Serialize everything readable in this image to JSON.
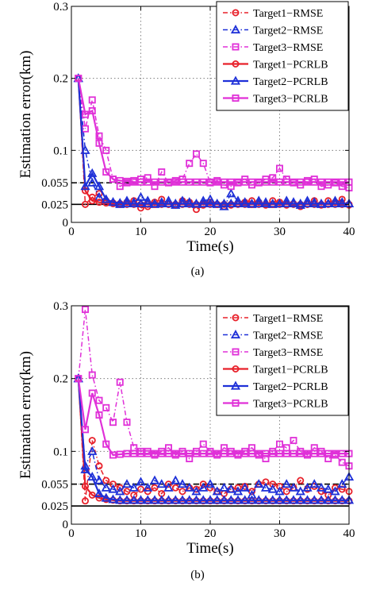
{
  "chart_data": [
    {
      "type": "line",
      "panel_label": "(a)",
      "xlabel": "Time(s)",
      "ylabel": "Estimation error(km)",
      "xlim": [
        0,
        40
      ],
      "ylim": [
        0,
        0.3
      ],
      "xticks": [
        0,
        10,
        20,
        30,
        40
      ],
      "yticks": [
        0,
        0.025,
        0.055,
        0.1,
        0.2,
        0.3
      ],
      "ytick_labels": [
        "0",
        "0.025",
        "0.055",
        "0.1",
        "0.2",
        "0.3"
      ],
      "grid": true,
      "legend_position": "top-right",
      "reference_lines": [
        {
          "y": 0.055,
          "style": "dashed",
          "color": "#000000"
        },
        {
          "y": 0.025,
          "style": "solid",
          "color": "#000000"
        }
      ],
      "x": [
        1,
        2,
        3,
        4,
        5,
        6,
        7,
        8,
        9,
        10,
        11,
        12,
        13,
        14,
        15,
        16,
        17,
        18,
        19,
        20,
        21,
        22,
        23,
        24,
        25,
        26,
        27,
        28,
        29,
        30,
        31,
        32,
        33,
        34,
        35,
        36,
        37,
        38,
        39,
        40
      ],
      "series": [
        {
          "name": "Target1−RMSE",
          "color": "#e8202a",
          "marker": "circle",
          "style": "dashdot",
          "values": [
            0.2,
            0.025,
            0.035,
            0.04,
            0.03,
            0.027,
            0.025,
            0.028,
            0.03,
            0.02,
            0.022,
            0.028,
            0.032,
            0.025,
            0.024,
            0.03,
            0.028,
            0.018,
            0.024,
            0.028,
            0.025,
            0.022,
            0.024,
            0.026,
            0.028,
            0.03,
            0.028,
            0.024,
            0.03,
            0.028,
            0.024,
            0.026,
            0.022,
            0.025,
            0.03,
            0.024,
            0.03,
            0.028,
            0.032,
            0.024
          ]
        },
        {
          "name": "Target2−RMSE",
          "color": "#1e30d8",
          "marker": "triangle",
          "style": "dashdot",
          "values": [
            0.2,
            0.1,
            0.055,
            0.035,
            0.03,
            0.028,
            0.025,
            0.03,
            0.028,
            0.035,
            0.03,
            0.025,
            0.028,
            0.03,
            0.024,
            0.03,
            0.028,
            0.025,
            0.03,
            0.032,
            0.025,
            0.022,
            0.04,
            0.03,
            0.028,
            0.025,
            0.03,
            0.028,
            0.025,
            0.026,
            0.03,
            0.028,
            0.024,
            0.03,
            0.028,
            0.025,
            0.026,
            0.03,
            0.028,
            0.026
          ]
        },
        {
          "name": "Target3−RMSE",
          "color": "#e030d8",
          "marker": "square",
          "style": "dashdot",
          "values": [
            0.2,
            0.13,
            0.17,
            0.12,
            0.1,
            0.06,
            0.05,
            0.055,
            0.058,
            0.06,
            0.062,
            0.05,
            0.07,
            0.055,
            0.058,
            0.06,
            0.082,
            0.095,
            0.082,
            0.055,
            0.058,
            0.052,
            0.05,
            0.055,
            0.06,
            0.052,
            0.055,
            0.06,
            0.062,
            0.075,
            0.06,
            0.055,
            0.052,
            0.058,
            0.06,
            0.05,
            0.052,
            0.055,
            0.05,
            0.048
          ]
        },
        {
          "name": "Target1−PCRLB",
          "color": "#e8202a",
          "marker": "circle",
          "style": "solid",
          "values": [
            0.2,
            0.044,
            0.03,
            0.028,
            0.027,
            0.026,
            0.026,
            0.025,
            0.025,
            0.025,
            0.025,
            0.025,
            0.025,
            0.025,
            0.025,
            0.025,
            0.025,
            0.025,
            0.025,
            0.025,
            0.025,
            0.025,
            0.025,
            0.025,
            0.025,
            0.025,
            0.025,
            0.025,
            0.025,
            0.025,
            0.025,
            0.025,
            0.025,
            0.025,
            0.025,
            0.025,
            0.025,
            0.025,
            0.025,
            0.025
          ]
        },
        {
          "name": "Target2−PCRLB",
          "color": "#1e30d8",
          "marker": "triangle",
          "style": "solid",
          "values": [
            0.2,
            0.05,
            0.068,
            0.05,
            0.032,
            0.028,
            0.027,
            0.026,
            0.026,
            0.026,
            0.026,
            0.026,
            0.026,
            0.026,
            0.026,
            0.026,
            0.026,
            0.026,
            0.026,
            0.026,
            0.026,
            0.026,
            0.026,
            0.026,
            0.026,
            0.026,
            0.026,
            0.026,
            0.026,
            0.026,
            0.026,
            0.026,
            0.026,
            0.026,
            0.026,
            0.026,
            0.026,
            0.026,
            0.026,
            0.026
          ]
        },
        {
          "name": "Target3−PCRLB",
          "color": "#e030d8",
          "marker": "square",
          "style": "solid",
          "values": [
            0.2,
            0.15,
            0.155,
            0.11,
            0.07,
            0.06,
            0.058,
            0.057,
            0.056,
            0.056,
            0.056,
            0.056,
            0.056,
            0.056,
            0.056,
            0.056,
            0.056,
            0.056,
            0.056,
            0.056,
            0.056,
            0.056,
            0.056,
            0.056,
            0.056,
            0.056,
            0.056,
            0.056,
            0.056,
            0.056,
            0.056,
            0.056,
            0.056,
            0.056,
            0.056,
            0.056,
            0.056,
            0.056,
            0.056,
            0.056
          ]
        }
      ]
    },
    {
      "type": "line",
      "panel_label": "(b)",
      "xlabel": "Time(s)",
      "ylabel": "Estimation error(km)",
      "xlim": [
        0,
        40
      ],
      "ylim": [
        0,
        0.3
      ],
      "xticks": [
        0,
        10,
        20,
        30,
        40
      ],
      "yticks": [
        0,
        0.025,
        0.055,
        0.1,
        0.2,
        0.3
      ],
      "ytick_labels": [
        "0",
        "0.025",
        "0.055",
        "0.1",
        "0.2",
        "0.3"
      ],
      "grid": true,
      "legend_position": "top-right",
      "reference_lines": [
        {
          "y": 0.055,
          "style": "dashed",
          "color": "#000000"
        },
        {
          "y": 0.025,
          "style": "solid",
          "color": "#000000"
        }
      ],
      "x": [
        1,
        2,
        3,
        4,
        5,
        6,
        7,
        8,
        9,
        10,
        11,
        12,
        13,
        14,
        15,
        16,
        17,
        18,
        19,
        20,
        21,
        22,
        23,
        24,
        25,
        26,
        27,
        28,
        29,
        30,
        31,
        32,
        33,
        34,
        35,
        36,
        37,
        38,
        39,
        40
      ],
      "series": [
        {
          "name": "Target1−RMSE",
          "color": "#e8202a",
          "marker": "circle",
          "style": "dashdot",
          "values": [
            0.2,
            0.032,
            0.115,
            0.08,
            0.06,
            0.055,
            0.05,
            0.045,
            0.04,
            0.048,
            0.045,
            0.05,
            0.042,
            0.055,
            0.05,
            0.045,
            0.05,
            0.048,
            0.055,
            0.05,
            0.045,
            0.042,
            0.048,
            0.05,
            0.052,
            0.045,
            0.055,
            0.058,
            0.055,
            0.052,
            0.045,
            0.05,
            0.06,
            0.048,
            0.052,
            0.045,
            0.04,
            0.05,
            0.048,
            0.045
          ]
        },
        {
          "name": "Target2−RMSE",
          "color": "#1e30d8",
          "marker": "triangle",
          "style": "dashdot",
          "values": [
            0.2,
            0.08,
            0.1,
            0.06,
            0.05,
            0.048,
            0.045,
            0.055,
            0.05,
            0.058,
            0.05,
            0.06,
            0.055,
            0.05,
            0.06,
            0.055,
            0.05,
            0.045,
            0.05,
            0.055,
            0.045,
            0.05,
            0.048,
            0.045,
            0.05,
            0.04,
            0.055,
            0.05,
            0.048,
            0.045,
            0.055,
            0.05,
            0.045,
            0.05,
            0.055,
            0.05,
            0.048,
            0.045,
            0.055,
            0.065
          ]
        },
        {
          "name": "Target3−RMSE",
          "color": "#e030d8",
          "marker": "square",
          "style": "dashdot",
          "values": [
            0.2,
            0.295,
            0.205,
            0.17,
            0.16,
            0.14,
            0.195,
            0.14,
            0.105,
            0.1,
            0.1,
            0.095,
            0.1,
            0.105,
            0.095,
            0.1,
            0.09,
            0.1,
            0.11,
            0.1,
            0.095,
            0.105,
            0.1,
            0.095,
            0.1,
            0.105,
            0.095,
            0.09,
            0.1,
            0.11,
            0.105,
            0.115,
            0.1,
            0.095,
            0.105,
            0.1,
            0.09,
            0.095,
            0.085,
            0.08
          ]
        },
        {
          "name": "Target1−PCRLB",
          "color": "#e8202a",
          "marker": "circle",
          "style": "solid",
          "values": [
            0.2,
            0.052,
            0.04,
            0.036,
            0.034,
            0.033,
            0.032,
            0.032,
            0.032,
            0.032,
            0.032,
            0.032,
            0.032,
            0.032,
            0.032,
            0.032,
            0.032,
            0.032,
            0.032,
            0.032,
            0.032,
            0.032,
            0.032,
            0.032,
            0.032,
            0.032,
            0.032,
            0.032,
            0.032,
            0.032,
            0.032,
            0.032,
            0.032,
            0.032,
            0.032,
            0.032,
            0.032,
            0.032,
            0.032,
            0.032
          ]
        },
        {
          "name": "Target2−PCRLB",
          "color": "#1e30d8",
          "marker": "triangle",
          "style": "solid",
          "values": [
            0.2,
            0.075,
            0.065,
            0.042,
            0.036,
            0.034,
            0.033,
            0.033,
            0.033,
            0.033,
            0.033,
            0.033,
            0.033,
            0.033,
            0.033,
            0.033,
            0.033,
            0.033,
            0.033,
            0.033,
            0.033,
            0.033,
            0.033,
            0.033,
            0.033,
            0.033,
            0.033,
            0.033,
            0.033,
            0.033,
            0.033,
            0.033,
            0.033,
            0.033,
            0.033,
            0.033,
            0.033,
            0.033,
            0.033,
            0.033
          ]
        },
        {
          "name": "Target3−PCRLB",
          "color": "#e030d8",
          "marker": "square",
          "style": "solid",
          "values": [
            0.2,
            0.13,
            0.18,
            0.15,
            0.11,
            0.095,
            0.096,
            0.097,
            0.097,
            0.097,
            0.097,
            0.097,
            0.097,
            0.097,
            0.097,
            0.097,
            0.097,
            0.097,
            0.097,
            0.097,
            0.097,
            0.097,
            0.097,
            0.097,
            0.097,
            0.097,
            0.097,
            0.097,
            0.097,
            0.097,
            0.097,
            0.097,
            0.097,
            0.097,
            0.097,
            0.097,
            0.097,
            0.097,
            0.097,
            0.097
          ]
        }
      ]
    }
  ]
}
